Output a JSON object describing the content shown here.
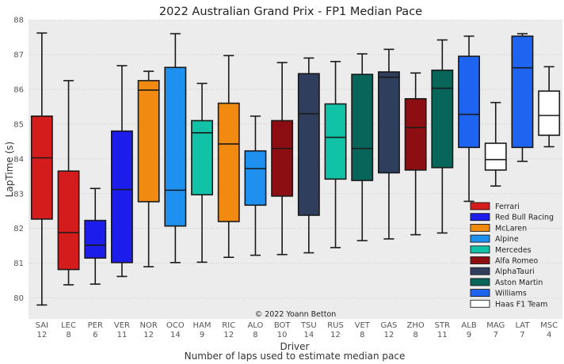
{
  "chart_data": {
    "type": "boxplot",
    "title": "2022 Australian Grand Prix - FP1 Median Pace",
    "xlabel": "Driver",
    "xlabel2": "Number of laps used to estimate median pace",
    "ylabel": "LapTime (s)",
    "ylim": [
      79.4,
      88
    ],
    "yticks": [
      80,
      81,
      82,
      83,
      84,
      85,
      86,
      87,
      88
    ],
    "grid": true,
    "legend_position": "lower-right",
    "credit": "© 2022 Yoann Betton",
    "teams": [
      {
        "name": "Ferrari",
        "color": "#d41c1c"
      },
      {
        "name": "Red Bull Racing",
        "color": "#1c1ceb"
      },
      {
        "name": "McLaren",
        "color": "#f08a10"
      },
      {
        "name": "Alpine",
        "color": "#1e90f0"
      },
      {
        "name": "Mercedes",
        "color": "#12c2a6"
      },
      {
        "name": "Alfa Romeo",
        "color": "#8c0e12"
      },
      {
        "name": "AlphaTauri",
        "color": "#2f3e5c"
      },
      {
        "name": "Aston Martin",
        "color": "#08655a"
      },
      {
        "name": "Williams",
        "color": "#1e64f0"
      },
      {
        "name": "Haas F1 Team",
        "color": "#ffffff"
      }
    ],
    "drivers": [
      {
        "driver": "SAI",
        "laps": "12",
        "team": 0,
        "min": 79.8,
        "q1": 82.27,
        "median": 84.03,
        "q3": 85.23,
        "max": 87.62
      },
      {
        "driver": "LEC",
        "laps": "8",
        "team": 0,
        "min": 80.38,
        "q1": 80.82,
        "median": 81.88,
        "q3": 83.65,
        "max": 86.25
      },
      {
        "driver": "PER",
        "laps": "6",
        "team": 1,
        "min": 80.4,
        "q1": 81.15,
        "median": 81.52,
        "q3": 82.23,
        "max": 83.15
      },
      {
        "driver": "VER",
        "laps": "11",
        "team": 1,
        "min": 80.62,
        "q1": 81.02,
        "median": 83.12,
        "q3": 84.8,
        "max": 86.68
      },
      {
        "driver": "NOR",
        "laps": "12",
        "team": 2,
        "min": 80.9,
        "q1": 82.77,
        "median": 85.98,
        "q3": 86.25,
        "max": 86.52
      },
      {
        "driver": "OCO",
        "laps": "14",
        "team": 3,
        "min": 81.02,
        "q1": 82.07,
        "median": 83.1,
        "q3": 86.63,
        "max": 87.6
      },
      {
        "driver": "HAM",
        "laps": "9",
        "team": 4,
        "min": 81.03,
        "q1": 82.97,
        "median": 84.75,
        "q3": 85.1,
        "max": 86.17
      },
      {
        "driver": "RIC",
        "laps": "12",
        "team": 2,
        "min": 81.17,
        "q1": 82.2,
        "median": 84.43,
        "q3": 85.6,
        "max": 86.97
      },
      {
        "driver": "ALO",
        "laps": "8",
        "team": 3,
        "min": 81.23,
        "q1": 82.67,
        "median": 83.72,
        "q3": 84.23,
        "max": 85.23
      },
      {
        "driver": "BOT",
        "laps": "10",
        "team": 5,
        "min": 81.25,
        "q1": 82.93,
        "median": 84.3,
        "q3": 85.1,
        "max": 86.77
      },
      {
        "driver": "TSU",
        "laps": "14",
        "team": 6,
        "min": 81.3,
        "q1": 82.38,
        "median": 85.3,
        "q3": 86.45,
        "max": 86.9
      },
      {
        "driver": "RUS",
        "laps": "12",
        "team": 4,
        "min": 81.45,
        "q1": 83.42,
        "median": 84.62,
        "q3": 85.58,
        "max": 86.8
      },
      {
        "driver": "VET",
        "laps": "8",
        "team": 7,
        "min": 81.65,
        "q1": 83.38,
        "median": 84.3,
        "q3": 86.43,
        "max": 87.02
      },
      {
        "driver": "GAS",
        "laps": "12",
        "team": 6,
        "min": 81.7,
        "q1": 83.6,
        "median": 86.35,
        "q3": 86.5,
        "max": 87.15
      },
      {
        "driver": "ZHO",
        "laps": "8",
        "team": 5,
        "min": 81.82,
        "q1": 83.68,
        "median": 84.9,
        "q3": 85.73,
        "max": 86.47
      },
      {
        "driver": "STR",
        "laps": "11",
        "team": 7,
        "min": 81.87,
        "q1": 83.75,
        "median": 86.03,
        "q3": 86.55,
        "max": 87.42
      },
      {
        "driver": "ALB",
        "laps": "9",
        "team": 8,
        "min": 82.78,
        "q1": 84.33,
        "median": 85.28,
        "q3": 86.95,
        "max": 87.53
      },
      {
        "driver": "MAG",
        "laps": "7",
        "team": 9,
        "min": 83.22,
        "q1": 83.68,
        "median": 83.98,
        "q3": 84.45,
        "max": 85.62
      },
      {
        "driver": "LAT",
        "laps": "7",
        "team": 8,
        "min": 83.93,
        "q1": 84.33,
        "median": 86.62,
        "q3": 87.53,
        "max": 87.6
      },
      {
        "driver": "MSC",
        "laps": "4",
        "team": 9,
        "min": 84.35,
        "q1": 84.68,
        "median": 85.25,
        "q3": 85.95,
        "max": 86.65
      }
    ]
  }
}
